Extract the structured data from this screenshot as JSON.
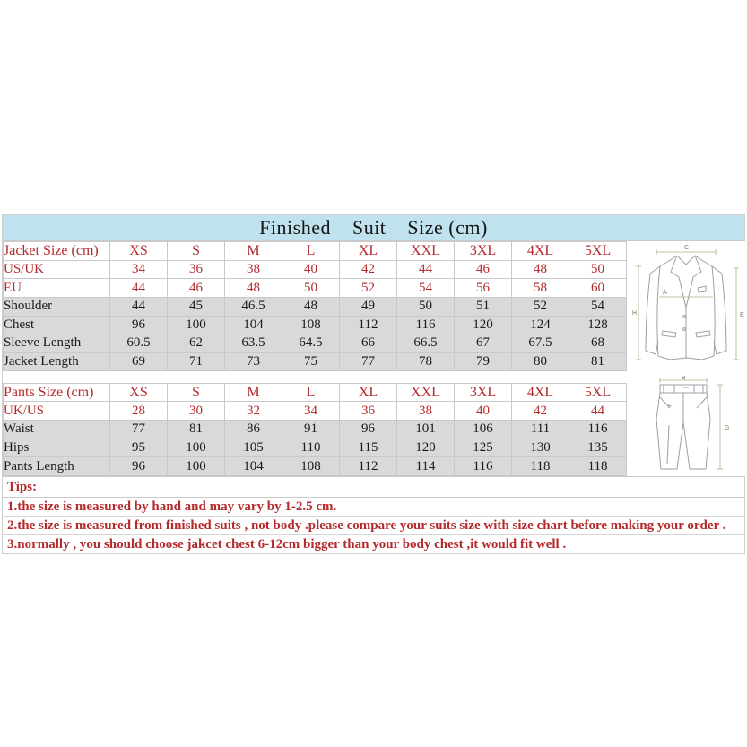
{
  "title": "Finished    Suit    Size (cm)",
  "colors": {
    "header_bg": "#c0e2ee",
    "gray_row_bg": "#d9d9d9",
    "red_text": "#b52a2c",
    "black_text": "#1a1a1a",
    "border": "#c9c9c9"
  },
  "sections": [
    {
      "name": "jacket",
      "header": {
        "label": "Jacket Size (cm)",
        "sizes": [
          "XS",
          "S",
          "M",
          "L",
          "XL",
          "XXL",
          "3XL",
          "4XL",
          "5XL"
        ]
      },
      "rows": [
        {
          "label": "US/UK",
          "red": true,
          "values": [
            "34",
            "36",
            "38",
            "40",
            "42",
            "44",
            "46",
            "48",
            "50"
          ]
        },
        {
          "label": "EU",
          "red": true,
          "values": [
            "44",
            "46",
            "48",
            "50",
            "52",
            "54",
            "56",
            "58",
            "60"
          ]
        },
        {
          "label": "Shoulder",
          "red": false,
          "values": [
            "44",
            "45",
            "46.5",
            "48",
            "49",
            "50",
            "51",
            "52",
            "54"
          ]
        },
        {
          "label": "Chest",
          "red": false,
          "values": [
            "96",
            "100",
            "104",
            "108",
            "112",
            "116",
            "120",
            "124",
            "128"
          ]
        },
        {
          "label": "Sleeve Length",
          "red": false,
          "values": [
            "60.5",
            "62",
            "63.5",
            "64.5",
            "66",
            "66.5",
            "67",
            "67.5",
            "68"
          ]
        },
        {
          "label": "Jacket Length",
          "red": false,
          "values": [
            "69",
            "71",
            "73",
            "75",
            "77",
            "78",
            "79",
            "80",
            "81"
          ]
        }
      ]
    },
    {
      "name": "pants",
      "header": {
        "label": "Pants Size (cm)",
        "sizes": [
          "XS",
          "S",
          "M",
          "L",
          "XL",
          "XXL",
          "3XL",
          "4XL",
          "5XL"
        ]
      },
      "rows": [
        {
          "label": "UK/US",
          "red": true,
          "values": [
            "28",
            "30",
            "32",
            "34",
            "36",
            "38",
            "40",
            "42",
            "44"
          ]
        },
        {
          "label": "Waist",
          "red": false,
          "values": [
            "77",
            "81",
            "86",
            "91",
            "96",
            "101",
            "106",
            "111",
            "116"
          ]
        },
        {
          "label": "Hips",
          "red": false,
          "values": [
            "95",
            "100",
            "105",
            "110",
            "115",
            "120",
            "125",
            "130",
            "135"
          ]
        },
        {
          "label": "Pants Length",
          "red": false,
          "values": [
            "96",
            "100",
            "104",
            "108",
            "112",
            "114",
            "116",
            "118",
            "118"
          ]
        }
      ]
    }
  ],
  "tips": {
    "heading": "Tips:",
    "items": [
      "1.the size is measured by hand and may vary by 1-2.5 cm.",
      "2.the size is measured from finished suits , not body .please compare your suits size with size chart before making your order .",
      "3.normally , you should choose jakcet chest 6-12cm bigger than your body chest ,it would fit well ."
    ]
  },
  "illustrations": {
    "jacket": {
      "top_label": "C",
      "chest_label": "A",
      "left_label": "H",
      "right_label": "E"
    },
    "pants": {
      "waist_label": "B",
      "hip_label": "F",
      "length_label": "G"
    }
  }
}
